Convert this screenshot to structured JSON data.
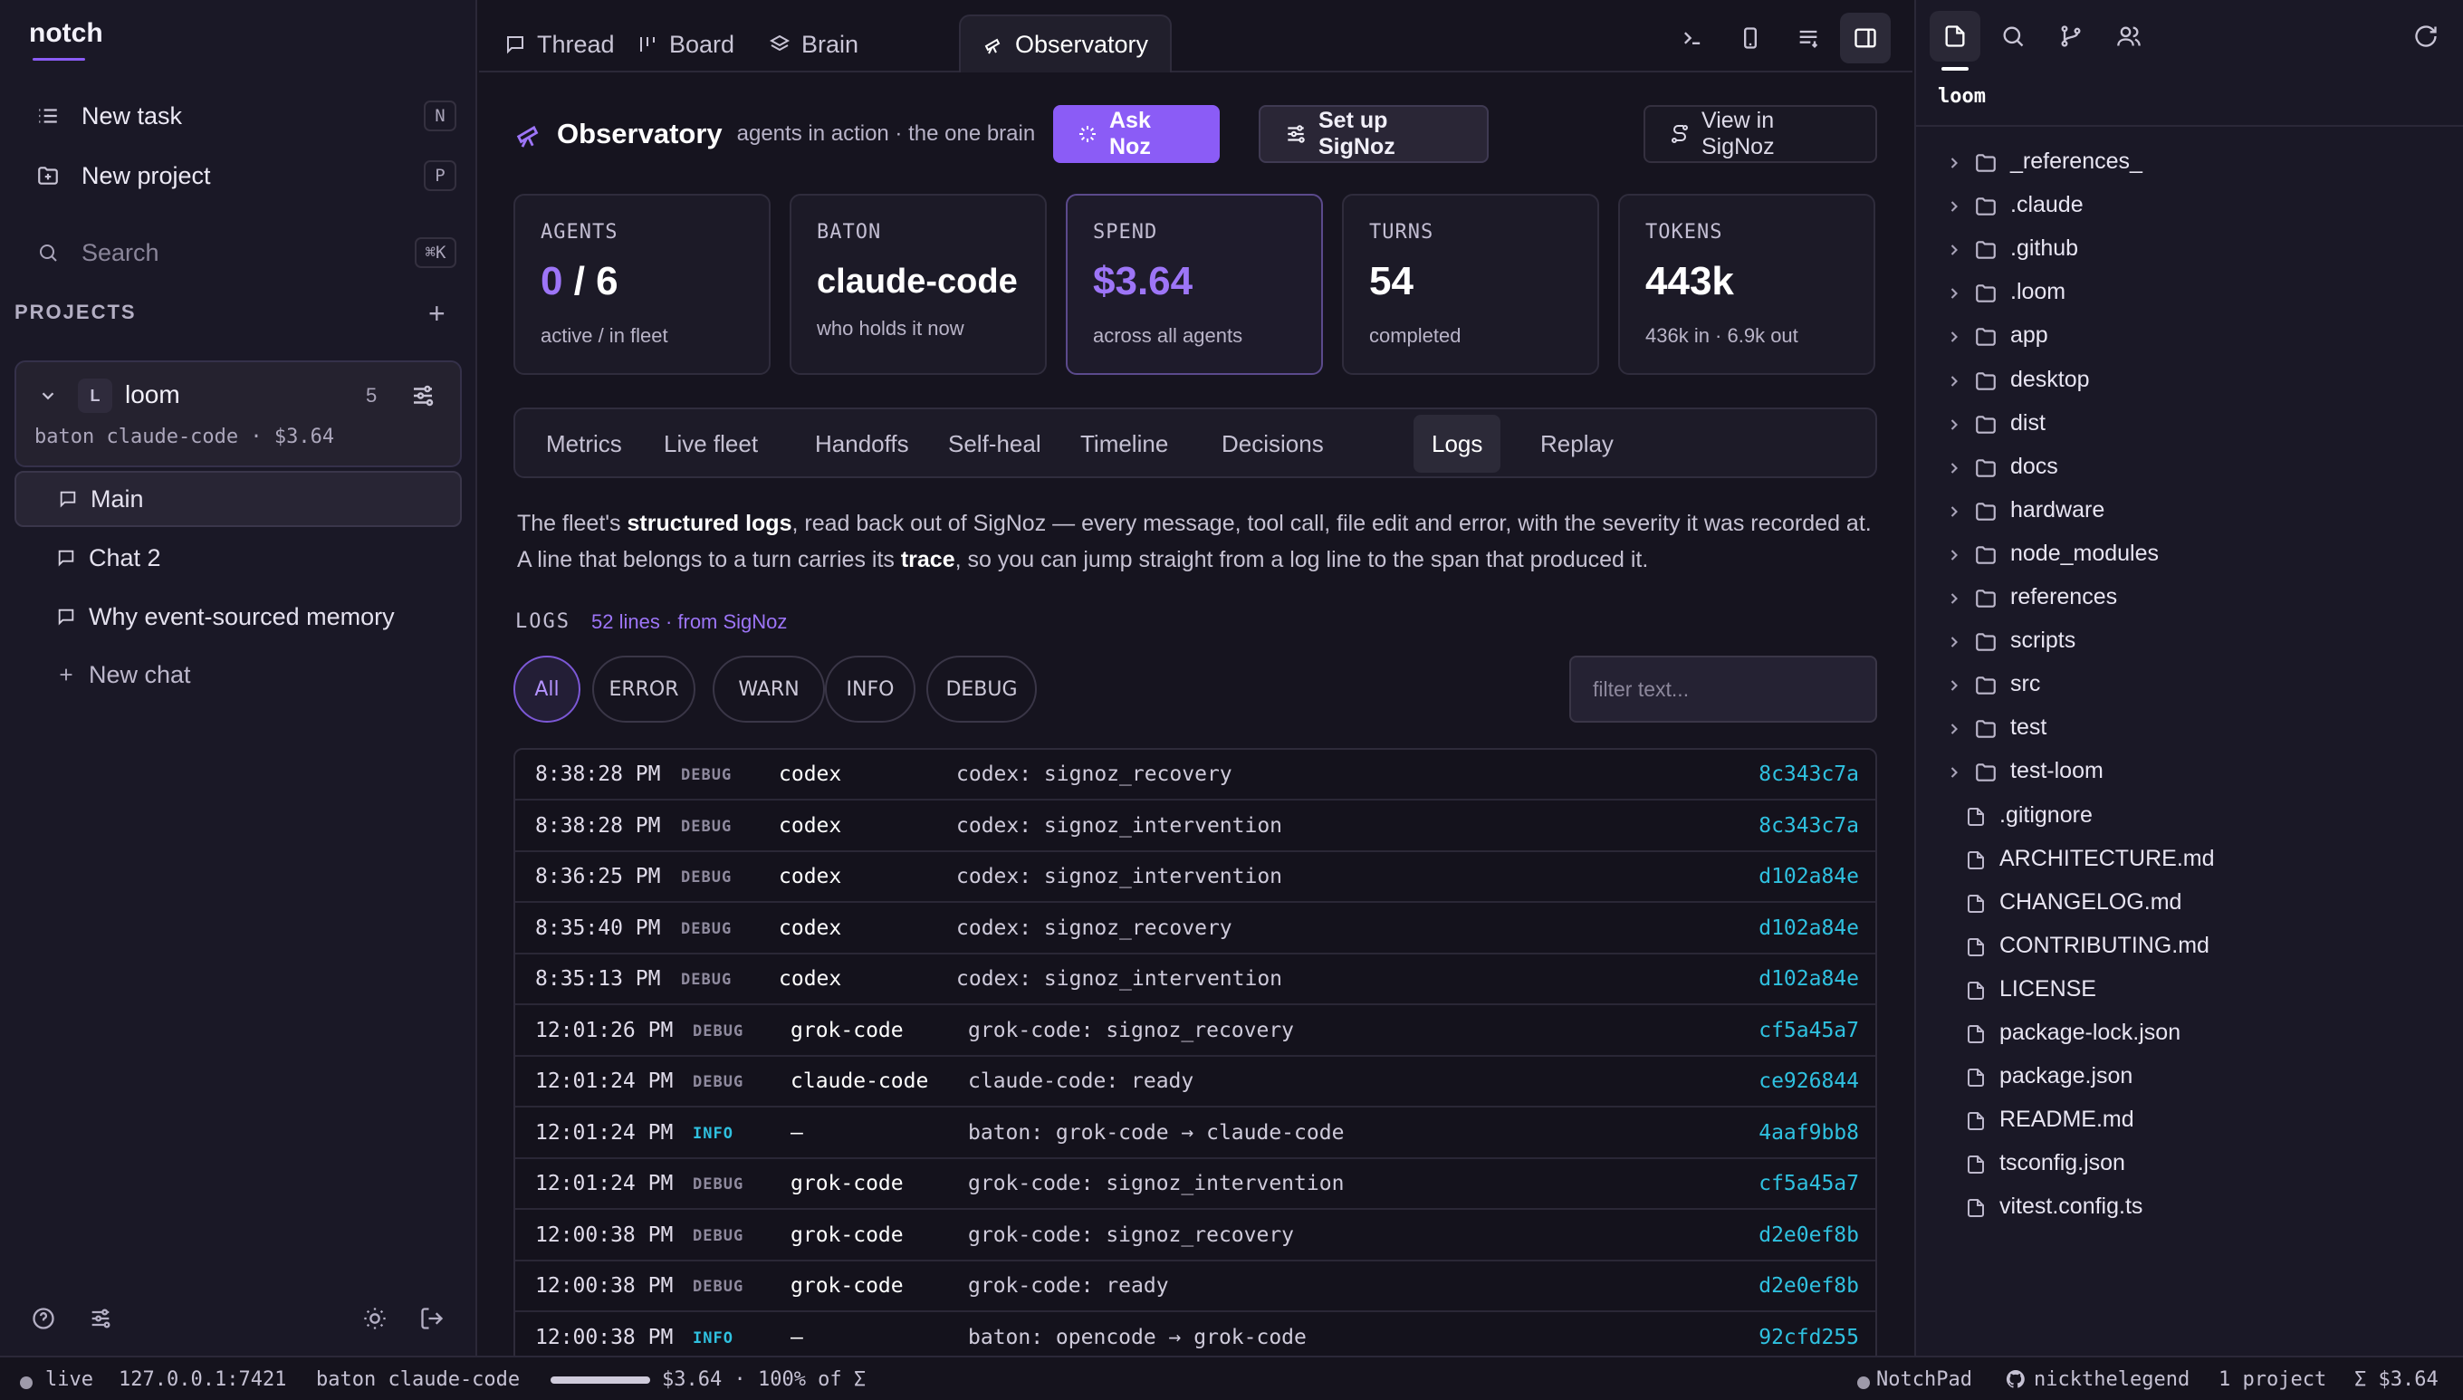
{
  "app": {
    "brand": "notch"
  },
  "sidebar": {
    "new_task": {
      "label": "New task",
      "shortcut": "N"
    },
    "new_project": {
      "label": "New project",
      "shortcut": "P"
    },
    "search": {
      "placeholder": "Search",
      "shortcut": "⌘K"
    },
    "projects_header": "PROJECTS",
    "project": {
      "avatar": "L",
      "name": "loom",
      "count": "5",
      "meta": "baton claude-code · $3.64"
    },
    "chats": [
      {
        "label": "Main",
        "active": true
      },
      {
        "label": "Chat 2",
        "active": false
      },
      {
        "label": "Why event-sourced memory",
        "active": false
      }
    ],
    "new_chat": "New chat"
  },
  "tabs": [
    {
      "label": "Thread",
      "icon": "chat-icon"
    },
    {
      "label": "Board",
      "icon": "board-icon"
    },
    {
      "label": "Brain",
      "icon": "layers-icon"
    },
    {
      "label": "Observatory",
      "icon": "telescope-icon",
      "active": true
    }
  ],
  "observatory": {
    "title": "Observatory",
    "subtitle": "agents in action · the one brain",
    "ask_button": "Ask Noz",
    "setup_button": "Set up SigNoz",
    "view_button": "View in SigNoz",
    "stats": [
      {
        "key": "AGENTS",
        "value_a": "0",
        "value_b": " / 6",
        "sub": "active / in fleet"
      },
      {
        "key": "BATON",
        "value": "claude-code",
        "sub": "who holds it now"
      },
      {
        "key": "SPEND",
        "value": "$3.64",
        "sub": "across all agents"
      },
      {
        "key": "TURNS",
        "value": "54",
        "sub": "completed"
      },
      {
        "key": "TOKENS",
        "value": "443k",
        "sub": "436k in · 6.9k out"
      }
    ],
    "subtabs": [
      "Metrics",
      "Live fleet",
      "Handoffs",
      "Self-heal",
      "Timeline",
      "Decisions",
      "Logs",
      "Replay"
    ],
    "active_subtab": "Logs",
    "description": {
      "p1": "The fleet's ",
      "b1": "structured logs",
      "p2": ", read back out of SigNoz — every message, tool call, file edit and error, with the severity it was recorded at. A line that belongs to a turn carries its ",
      "b2": "trace",
      "p3": ", so you can jump straight from a log line to the span that produced it."
    },
    "logs_header": "LOGS",
    "logs_count": "52 lines · from SigNoz",
    "filters": [
      "All",
      "ERROR",
      "WARN",
      "INFO",
      "DEBUG"
    ],
    "active_filter": "All",
    "filter_placeholder": "filter text...",
    "log_rows": [
      {
        "time": "8:38:28 PM",
        "level": "DEBUG",
        "agent": "codex",
        "message": "codex: signoz_recovery",
        "trace": "8c343c7a"
      },
      {
        "time": "8:38:28 PM",
        "level": "DEBUG",
        "agent": "codex",
        "message": "codex: signoz_intervention",
        "trace": "8c343c7a"
      },
      {
        "time": "8:36:25 PM",
        "level": "DEBUG",
        "agent": "codex",
        "message": "codex: signoz_intervention",
        "trace": "d102a84e"
      },
      {
        "time": "8:35:40 PM",
        "level": "DEBUG",
        "agent": "codex",
        "message": "codex: signoz_recovery",
        "trace": "d102a84e"
      },
      {
        "time": "8:35:13 PM",
        "level": "DEBUG",
        "agent": "codex",
        "message": "codex: signoz_intervention",
        "trace": "d102a84e"
      },
      {
        "time": "12:01:26 PM",
        "level": "DEBUG",
        "agent": "grok-code",
        "message": "grok-code: signoz_recovery",
        "trace": "cf5a45a7"
      },
      {
        "time": "12:01:24 PM",
        "level": "DEBUG",
        "agent": "claude-code",
        "message": "claude-code: ready",
        "trace": "ce926844"
      },
      {
        "time": "12:01:24 PM",
        "level": "INFO",
        "agent": "—",
        "message": "baton: grok-code → claude-code",
        "trace": "4aaf9bb8"
      },
      {
        "time": "12:01:24 PM",
        "level": "DEBUG",
        "agent": "grok-code",
        "message": "grok-code: signoz_intervention",
        "trace": "cf5a45a7"
      },
      {
        "time": "12:00:38 PM",
        "level": "DEBUG",
        "agent": "grok-code",
        "message": "grok-code: signoz_recovery",
        "trace": "d2e0ef8b"
      },
      {
        "time": "12:00:38 PM",
        "level": "DEBUG",
        "agent": "grok-code",
        "message": "grok-code: ready",
        "trace": "d2e0ef8b"
      },
      {
        "time": "12:00:38 PM",
        "level": "INFO",
        "agent": "—",
        "message": "baton: opencode → grok-code",
        "trace": "92cfd255"
      }
    ]
  },
  "file_tree": {
    "root": "loom",
    "folders": [
      "_references_",
      ".claude",
      ".github",
      ".loom",
      "app",
      "desktop",
      "dist",
      "docs",
      "hardware",
      "node_modules",
      "references",
      "scripts",
      "src",
      "test",
      "test-loom"
    ],
    "files": [
      ".gitignore",
      "ARCHITECTURE.md",
      "CHANGELOG.md",
      "CONTRIBUTING.md",
      "LICENSE",
      "package-lock.json",
      "package.json",
      "README.md",
      "tsconfig.json",
      "vitest.config.ts"
    ]
  },
  "status_bar": {
    "live": "live",
    "host": "127.0.0.1:7421",
    "baton": "baton claude-code",
    "budget_fraction": 1.0,
    "spend": "$3.64 · 100% of Σ",
    "app": "NotchPad",
    "user": "nickthelegend",
    "projects": "1 project",
    "total": "Σ $3.64"
  },
  "colors": {
    "accent": "#8b5cf6",
    "trace": "#2fc1e0",
    "background": "#16141f"
  }
}
